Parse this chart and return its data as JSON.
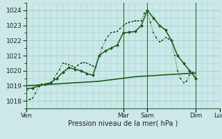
{
  "bg_color": "#cce8e8",
  "grid_color": "#99cccc",
  "line_color": "#1a5c1a",
  "xlabel": "Pression niveau de la mer( hPa )",
  "ylim": [
    1017.5,
    1024.5
  ],
  "xlim": [
    0,
    192
  ],
  "yticks": [
    1018,
    1019,
    1020,
    1021,
    1022,
    1023,
    1024
  ],
  "day_labels": [
    "Ven",
    "Mar",
    "Sam",
    "Dim",
    "Lun"
  ],
  "day_x": [
    0,
    96,
    120,
    168,
    192
  ],
  "s1_x": [
    0,
    3,
    6,
    9,
    12,
    15,
    18,
    21,
    24,
    27,
    30,
    33,
    36,
    39,
    42,
    45,
    48,
    51,
    54,
    57,
    60,
    63,
    66,
    69,
    72,
    75,
    78,
    81,
    84,
    87,
    90,
    93,
    96,
    99,
    102,
    105,
    108,
    111,
    114,
    117,
    120,
    123,
    126,
    129,
    132,
    135,
    138,
    141,
    144,
    147,
    150,
    153,
    156,
    159,
    162,
    165,
    168
  ],
  "s1_y": [
    1018.0,
    1018.1,
    1018.2,
    1018.5,
    1019.0,
    1019.1,
    1019.1,
    1019.15,
    1019.2,
    1019.5,
    1019.8,
    1020.1,
    1020.5,
    1020.45,
    1020.4,
    1020.3,
    1020.2,
    1020.35,
    1020.5,
    1020.55,
    1020.5,
    1020.4,
    1020.3,
    1020.2,
    1021.0,
    1021.5,
    1022.0,
    1022.3,
    1022.5,
    1022.55,
    1022.6,
    1022.8,
    1023.0,
    1023.1,
    1023.2,
    1023.25,
    1023.3,
    1023.3,
    1023.3,
    1023.8,
    1023.9,
    1023.2,
    1022.5,
    1022.2,
    1021.9,
    1022.0,
    1022.2,
    1022.1,
    1022.0,
    1021.0,
    1020.0,
    1019.5,
    1019.2,
    1019.3,
    1019.7,
    1019.9,
    1019.5
  ],
  "s2_x": [
    0,
    6,
    12,
    18,
    24,
    30,
    36,
    42,
    48,
    54,
    60,
    66,
    72,
    78,
    84,
    90,
    96,
    102,
    108,
    114,
    120,
    126,
    132,
    138,
    144,
    150,
    156,
    162,
    168
  ],
  "s2_y": [
    1018.8,
    1018.85,
    1019.0,
    1019.1,
    1019.2,
    1019.5,
    1019.9,
    1020.2,
    1020.1,
    1020.0,
    1019.8,
    1019.7,
    1021.0,
    1021.3,
    1021.5,
    1021.7,
    1022.5,
    1022.55,
    1022.6,
    1023.0,
    1024.0,
    1023.5,
    1023.0,
    1022.7,
    1022.0,
    1021.0,
    1020.5,
    1020.0,
    1019.5
  ],
  "s3_x": [
    0,
    12,
    24,
    36,
    48,
    60,
    72,
    84,
    96,
    108,
    120,
    132,
    144,
    156,
    168
  ],
  "s3_y": [
    1019.0,
    1019.05,
    1019.1,
    1019.15,
    1019.2,
    1019.25,
    1019.3,
    1019.4,
    1019.5,
    1019.6,
    1019.65,
    1019.7,
    1019.75,
    1019.8,
    1019.85
  ]
}
